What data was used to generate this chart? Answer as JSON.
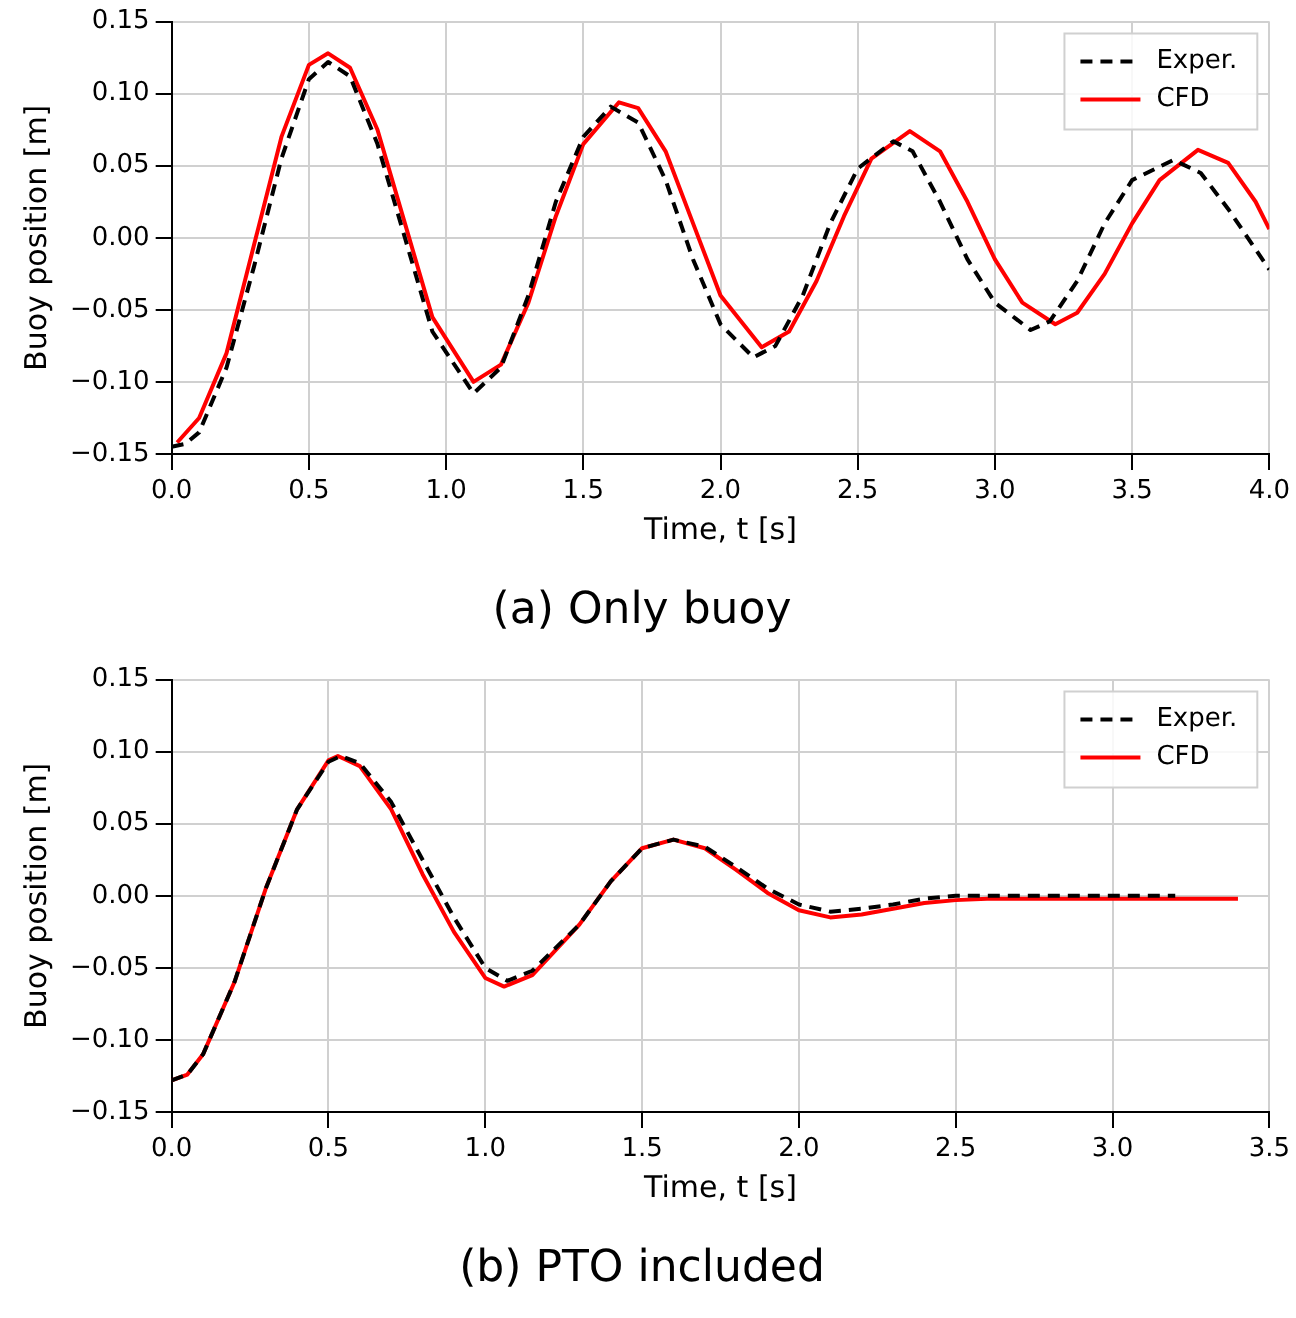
{
  "chart_data": [
    {
      "type": "line",
      "title": "(a) Only buoy",
      "xlabel": "Time, t [s]",
      "ylabel": "Buoy position [m]",
      "xlim": [
        0,
        4
      ],
      "ylim": [
        -0.15,
        0.15
      ],
      "xticks": [
        {
          "value": 0,
          "label": "0.0"
        },
        {
          "value": 0.5,
          "label": "0.5"
        },
        {
          "value": 1,
          "label": "1.0"
        },
        {
          "value": 1.5,
          "label": "1.5"
        },
        {
          "value": 2,
          "label": "2.0"
        },
        {
          "value": 2.5,
          "label": "2.5"
        },
        {
          "value": 3,
          "label": "3.0"
        },
        {
          "value": 3.5,
          "label": "3.5"
        },
        {
          "value": 4,
          "label": "4.0"
        }
      ],
      "yticks": [
        {
          "value": -0.15,
          "label": "−0.15"
        },
        {
          "value": -0.1,
          "label": "−0.10"
        },
        {
          "value": -0.05,
          "label": "−0.05"
        },
        {
          "value": 0,
          "label": "0.00"
        },
        {
          "value": 0.05,
          "label": "0.05"
        },
        {
          "value": 0.1,
          "label": "0.10"
        },
        {
          "value": 0.15,
          "label": "0.15"
        }
      ],
      "grid": true,
      "legend": "top right",
      "marker": "none",
      "series": [
        {
          "name": "Exper.",
          "color": "#000000",
          "line_style": "dashed",
          "x": [
            0,
            0.05,
            0.1,
            0.2,
            0.3,
            0.4,
            0.5,
            0.57,
            0.65,
            0.75,
            0.85,
            0.95,
            1.1,
            1.2,
            1.3,
            1.4,
            1.5,
            1.6,
            1.7,
            1.8,
            1.9,
            2.0,
            2.12,
            2.2,
            2.3,
            2.4,
            2.5,
            2.63,
            2.7,
            2.8,
            2.9,
            3.0,
            3.13,
            3.2,
            3.3,
            3.4,
            3.5,
            3.65,
            3.75,
            3.85,
            4.0
          ],
          "values": [
            -0.145,
            -0.143,
            -0.135,
            -0.09,
            -0.02,
            0.055,
            0.11,
            0.122,
            0.112,
            0.065,
            0.0,
            -0.065,
            -0.108,
            -0.09,
            -0.04,
            0.025,
            0.07,
            0.091,
            0.08,
            0.04,
            -0.015,
            -0.06,
            -0.083,
            -0.075,
            -0.04,
            0.01,
            0.048,
            0.067,
            0.06,
            0.025,
            -0.015,
            -0.045,
            -0.064,
            -0.058,
            -0.03,
            0.01,
            0.04,
            0.054,
            0.045,
            0.02,
            -0.022
          ]
        },
        {
          "name": "CFD",
          "color": "#ff0000",
          "line_style": "solid",
          "x": [
            0.02,
            0.1,
            0.2,
            0.3,
            0.4,
            0.5,
            0.57,
            0.65,
            0.75,
            0.85,
            0.95,
            1.1,
            1.2,
            1.3,
            1.4,
            1.5,
            1.63,
            1.7,
            1.8,
            1.9,
            2.0,
            2.15,
            2.25,
            2.35,
            2.45,
            2.55,
            2.69,
            2.8,
            2.9,
            3.0,
            3.1,
            3.22,
            3.3,
            3.4,
            3.5,
            3.6,
            3.74,
            3.85,
            3.95,
            4.0
          ],
          "values": [
            -0.142,
            -0.125,
            -0.08,
            -0.005,
            0.07,
            0.12,
            0.128,
            0.118,
            0.075,
            0.01,
            -0.055,
            -0.1,
            -0.088,
            -0.045,
            0.015,
            0.065,
            0.094,
            0.09,
            0.06,
            0.01,
            -0.04,
            -0.076,
            -0.065,
            -0.03,
            0.015,
            0.055,
            0.074,
            0.06,
            0.025,
            -0.015,
            -0.045,
            -0.06,
            -0.052,
            -0.025,
            0.01,
            0.04,
            0.061,
            0.052,
            0.025,
            0.006
          ]
        }
      ]
    },
    {
      "type": "line",
      "title": "(b) PTO included",
      "xlabel": "Time, t [s]",
      "ylabel": "Buoy position [m]",
      "xlim": [
        0,
        3.5
      ],
      "ylim": [
        -0.15,
        0.15
      ],
      "xticks": [
        {
          "value": 0,
          "label": "0.0"
        },
        {
          "value": 0.5,
          "label": "0.5"
        },
        {
          "value": 1,
          "label": "1.0"
        },
        {
          "value": 1.5,
          "label": "1.5"
        },
        {
          "value": 2,
          "label": "2.0"
        },
        {
          "value": 2.5,
          "label": "2.5"
        },
        {
          "value": 3,
          "label": "3.0"
        },
        {
          "value": 3.5,
          "label": "3.5"
        }
      ],
      "yticks": [
        {
          "value": -0.15,
          "label": "−0.15"
        },
        {
          "value": -0.1,
          "label": "−0.10"
        },
        {
          "value": -0.05,
          "label": "−0.05"
        },
        {
          "value": 0,
          "label": "0.00"
        },
        {
          "value": 0.05,
          "label": "0.05"
        },
        {
          "value": 0.1,
          "label": "0.10"
        },
        {
          "value": 0.15,
          "label": "0.15"
        }
      ],
      "grid": true,
      "legend": "top right",
      "marker": "none",
      "series": [
        {
          "name": "Exper.",
          "color": "#000000",
          "line_style": "dashed",
          "x": [
            0,
            0.05,
            0.1,
            0.2,
            0.3,
            0.4,
            0.5,
            0.54,
            0.6,
            0.7,
            0.8,
            0.9,
            1.0,
            1.07,
            1.15,
            1.3,
            1.4,
            1.5,
            1.6,
            1.7,
            1.8,
            1.9,
            2.0,
            2.1,
            2.2,
            2.3,
            2.4,
            2.5,
            3.2
          ],
          "values": [
            -0.128,
            -0.124,
            -0.11,
            -0.06,
            0.005,
            0.06,
            0.093,
            0.097,
            0.092,
            0.065,
            0.025,
            -0.015,
            -0.05,
            -0.059,
            -0.052,
            -0.02,
            0.01,
            0.033,
            0.039,
            0.034,
            0.02,
            0.005,
            -0.006,
            -0.011,
            -0.009,
            -0.006,
            -0.002,
            0,
            0
          ]
        },
        {
          "name": "CFD",
          "color": "#ff0000",
          "line_style": "solid",
          "x": [
            0,
            0.05,
            0.1,
            0.2,
            0.3,
            0.4,
            0.5,
            0.53,
            0.6,
            0.7,
            0.8,
            0.9,
            1.0,
            1.06,
            1.15,
            1.3,
            1.4,
            1.5,
            1.6,
            1.7,
            1.8,
            1.9,
            2.0,
            2.1,
            2.2,
            2.3,
            2.4,
            2.5,
            2.6,
            3.4
          ],
          "values": [
            -0.128,
            -0.124,
            -0.11,
            -0.06,
            0.005,
            0.06,
            0.094,
            0.097,
            0.09,
            0.06,
            0.015,
            -0.025,
            -0.057,
            -0.063,
            -0.055,
            -0.02,
            0.01,
            0.033,
            0.039,
            0.033,
            0.018,
            0.002,
            -0.01,
            -0.015,
            -0.013,
            -0.009,
            -0.005,
            -0.003,
            -0.002,
            -0.002
          ]
        }
      ]
    }
  ]
}
